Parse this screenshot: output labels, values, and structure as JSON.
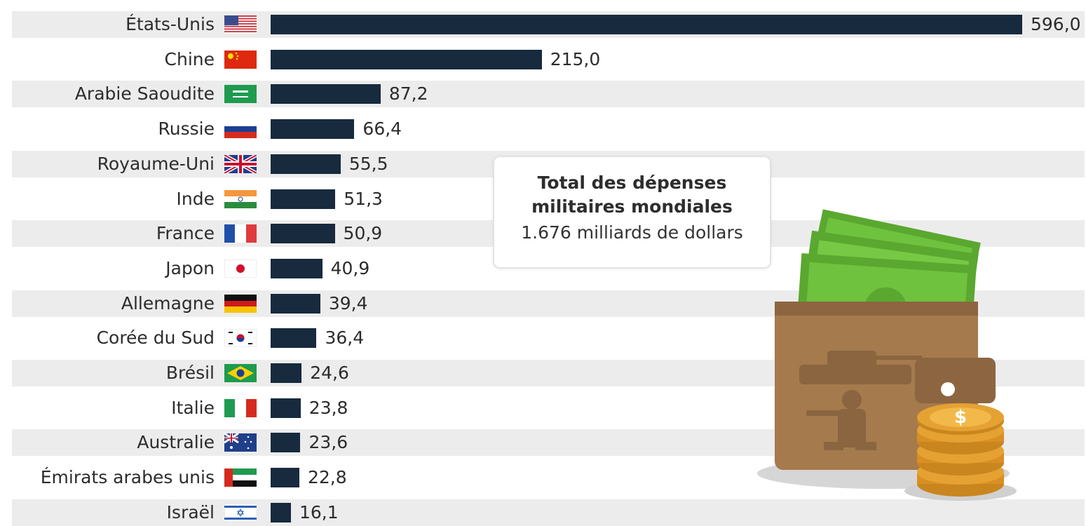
{
  "chart_data": {
    "type": "bar",
    "orientation": "horizontal",
    "categories": [
      "États-Unis",
      "Chine",
      "Arabie Saoudite",
      "Russie",
      "Royaume-Uni",
      "Inde",
      "France",
      "Japon",
      "Allemagne",
      "Corée du Sud",
      "Brésil",
      "Italie",
      "Australie",
      "Émirats arabes unis",
      "Israël"
    ],
    "values": [
      596.0,
      215.0,
      87.2,
      66.4,
      55.5,
      51.3,
      50.9,
      40.9,
      39.4,
      36.4,
      24.6,
      23.8,
      23.6,
      22.8,
      16.1
    ],
    "value_labels": [
      "596,0",
      "215,0",
      "87,2",
      "66,4",
      "55,5",
      "51,3",
      "50,9",
      "40,9",
      "39,4",
      "36,4",
      "24,6",
      "23,8",
      "23,6",
      "22,8",
      "16,1"
    ],
    "flag_icons": [
      "flag-us-icon",
      "flag-cn-icon",
      "flag-sa-icon",
      "flag-ru-icon",
      "flag-gb-icon",
      "flag-in-icon",
      "flag-fr-icon",
      "flag-jp-icon",
      "flag-de-icon",
      "flag-kr-icon",
      "flag-br-icon",
      "flag-it-icon",
      "flag-au-icon",
      "flag-ae-icon",
      "flag-il-icon"
    ],
    "xlim": [
      0,
      596
    ],
    "bar_color": "#172a3e",
    "band_color": "#ececec",
    "grid": false,
    "legend": "none"
  },
  "callout": {
    "title_line1": "Total des dépenses",
    "title_line2": "militaires mondiales",
    "subtitle": "1.676 milliards de dollars"
  },
  "illustration": {
    "icon": "wallet-money-coins-icon",
    "colors": {
      "wallet": "#a57a4d",
      "money": "#6fc23e",
      "coins": "#e5a233"
    }
  }
}
